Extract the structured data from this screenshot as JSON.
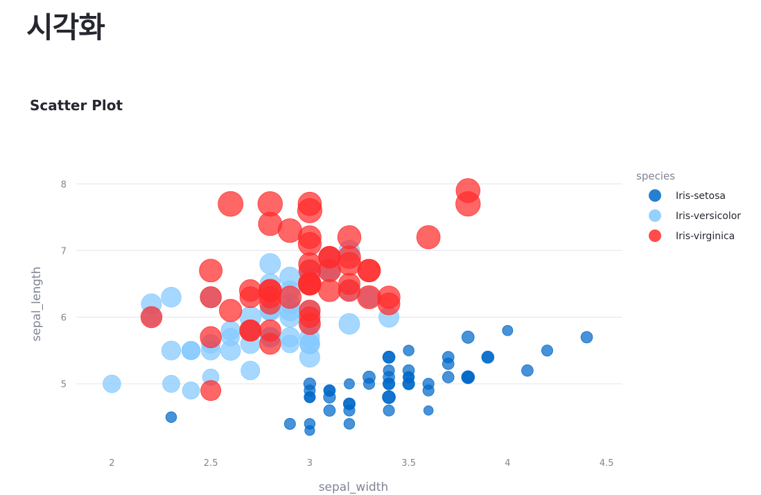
{
  "page": {
    "title": "시각화",
    "section_title": "Scatter Plot"
  },
  "chart_data": {
    "type": "scatter",
    "title": "Scatter Plot",
    "xlabel": "sepal_width",
    "ylabel": "sepal_length",
    "xlim": [
      1.82,
      4.58
    ],
    "ylim": [
      4.05,
      8.45
    ],
    "xticks": [
      2,
      2.5,
      3,
      3.5,
      4,
      4.5
    ],
    "xtick_labels": [
      "2",
      "2.5",
      "3",
      "3.5",
      "4",
      "4.5"
    ],
    "yticks": [
      5,
      6,
      7,
      8
    ],
    "ytick_labels": [
      "5",
      "6",
      "7",
      "8"
    ],
    "grid": true,
    "legend_title": "species",
    "legend_position": "right",
    "size_encoding": "petal_length",
    "series": [
      {
        "name": "Iris-setosa",
        "color": "#0068c9",
        "points": [
          [
            3.5,
            5.1,
            1.4
          ],
          [
            3.0,
            4.9,
            1.4
          ],
          [
            3.2,
            4.7,
            1.3
          ],
          [
            3.1,
            4.6,
            1.5
          ],
          [
            3.6,
            5.0,
            1.4
          ],
          [
            3.9,
            5.4,
            1.7
          ],
          [
            3.4,
            4.6,
            1.4
          ],
          [
            3.4,
            5.0,
            1.5
          ],
          [
            2.9,
            4.4,
            1.4
          ],
          [
            3.1,
            4.9,
            1.5
          ],
          [
            3.7,
            5.4,
            1.5
          ],
          [
            3.4,
            4.8,
            1.6
          ],
          [
            3.0,
            4.8,
            1.4
          ],
          [
            3.0,
            4.3,
            1.1
          ],
          [
            4.0,
            5.8,
            1.2
          ],
          [
            4.4,
            5.7,
            1.5
          ],
          [
            3.9,
            5.4,
            1.3
          ],
          [
            3.5,
            5.1,
            1.4
          ],
          [
            3.8,
            5.7,
            1.7
          ],
          [
            3.8,
            5.1,
            1.5
          ],
          [
            3.4,
            5.4,
            1.7
          ],
          [
            3.7,
            5.1,
            1.5
          ],
          [
            3.6,
            4.6,
            1.0
          ],
          [
            3.3,
            5.1,
            1.7
          ],
          [
            3.4,
            4.8,
            1.9
          ],
          [
            3.0,
            5.0,
            1.6
          ],
          [
            3.4,
            5.0,
            1.6
          ],
          [
            3.5,
            5.2,
            1.5
          ],
          [
            3.4,
            5.2,
            1.4
          ],
          [
            3.2,
            4.7,
            1.6
          ],
          [
            3.1,
            4.8,
            1.6
          ],
          [
            3.4,
            5.4,
            1.5
          ],
          [
            4.1,
            5.2,
            1.5
          ],
          [
            4.2,
            5.5,
            1.4
          ],
          [
            3.1,
            4.9,
            1.5
          ],
          [
            3.2,
            5.0,
            1.2
          ],
          [
            3.5,
            5.5,
            1.3
          ],
          [
            3.6,
            4.9,
            1.4
          ],
          [
            3.0,
            4.4,
            1.3
          ],
          [
            3.4,
            5.1,
            1.5
          ],
          [
            3.5,
            5.0,
            1.3
          ],
          [
            2.3,
            4.5,
            1.3
          ],
          [
            3.2,
            4.4,
            1.3
          ],
          [
            3.5,
            5.0,
            1.6
          ],
          [
            3.8,
            5.1,
            1.9
          ],
          [
            3.0,
            4.8,
            1.4
          ],
          [
            3.8,
            5.1,
            1.6
          ],
          [
            3.2,
            4.6,
            1.4
          ],
          [
            3.7,
            5.3,
            1.5
          ],
          [
            3.3,
            5.0,
            1.4
          ]
        ]
      },
      {
        "name": "Iris-versicolor",
        "color": "#83c9ff",
        "points": [
          [
            3.2,
            7.0,
            4.7
          ],
          [
            3.2,
            6.4,
            4.5
          ],
          [
            3.1,
            6.9,
            4.9
          ],
          [
            2.3,
            5.5,
            4.0
          ],
          [
            2.8,
            6.5,
            4.6
          ],
          [
            2.8,
            5.7,
            4.5
          ],
          [
            3.3,
            6.3,
            4.7
          ],
          [
            2.4,
            4.9,
            3.3
          ],
          [
            2.9,
            6.6,
            4.6
          ],
          [
            2.7,
            5.2,
            3.9
          ],
          [
            2.0,
            5.0,
            3.5
          ],
          [
            3.0,
            5.9,
            4.2
          ],
          [
            2.2,
            6.0,
            4.0
          ],
          [
            2.9,
            6.1,
            4.7
          ],
          [
            2.9,
            5.6,
            3.6
          ],
          [
            3.1,
            6.7,
            4.4
          ],
          [
            3.0,
            5.6,
            4.5
          ],
          [
            2.7,
            5.8,
            4.1
          ],
          [
            2.2,
            6.2,
            4.5
          ],
          [
            2.5,
            5.6,
            3.9
          ],
          [
            3.2,
            5.9,
            4.8
          ],
          [
            2.8,
            6.1,
            4.0
          ],
          [
            2.5,
            6.3,
            4.9
          ],
          [
            2.8,
            6.1,
            4.7
          ],
          [
            2.9,
            6.4,
            4.3
          ],
          [
            3.0,
            6.6,
            4.4
          ],
          [
            2.8,
            6.8,
            4.8
          ],
          [
            3.0,
            6.7,
            5.0
          ],
          [
            2.9,
            6.0,
            4.5
          ],
          [
            2.6,
            5.7,
            3.5
          ],
          [
            2.4,
            5.5,
            3.8
          ],
          [
            2.4,
            5.5,
            3.7
          ],
          [
            2.7,
            5.8,
            3.9
          ],
          [
            2.7,
            6.0,
            5.1
          ],
          [
            3.0,
            5.4,
            4.5
          ],
          [
            3.4,
            6.0,
            4.5
          ],
          [
            3.1,
            6.7,
            4.7
          ],
          [
            2.3,
            6.3,
            4.4
          ],
          [
            3.0,
            5.6,
            4.1
          ],
          [
            2.5,
            5.5,
            4.0
          ],
          [
            2.6,
            5.5,
            4.4
          ],
          [
            3.0,
            6.1,
            4.6
          ],
          [
            2.6,
            5.8,
            4.0
          ],
          [
            2.3,
            5.0,
            3.3
          ],
          [
            2.7,
            5.6,
            4.2
          ],
          [
            3.0,
            5.7,
            4.2
          ],
          [
            2.9,
            5.7,
            4.2
          ],
          [
            2.9,
            6.2,
            4.3
          ],
          [
            2.5,
            5.1,
            3.0
          ],
          [
            2.8,
            5.7,
            4.1
          ]
        ]
      },
      {
        "name": "Iris-virginica",
        "color": "#ff2b2b",
        "points": [
          [
            3.3,
            6.3,
            6.0
          ],
          [
            2.7,
            5.8,
            5.1
          ],
          [
            3.0,
            7.1,
            5.9
          ],
          [
            2.9,
            6.3,
            5.6
          ],
          [
            3.0,
            6.5,
            5.8
          ],
          [
            3.0,
            7.6,
            6.6
          ],
          [
            2.5,
            4.9,
            4.5
          ],
          [
            2.9,
            7.3,
            6.3
          ],
          [
            2.5,
            6.7,
            5.8
          ],
          [
            3.6,
            7.2,
            6.1
          ],
          [
            3.2,
            6.5,
            5.1
          ],
          [
            2.7,
            6.4,
            5.3
          ],
          [
            3.0,
            6.8,
            5.5
          ],
          [
            2.5,
            5.7,
            5.0
          ],
          [
            2.8,
            5.8,
            5.1
          ],
          [
            3.2,
            6.4,
            5.3
          ],
          [
            3.0,
            6.5,
            5.5
          ],
          [
            3.8,
            7.7,
            6.7
          ],
          [
            2.6,
            7.7,
            6.9
          ],
          [
            2.2,
            6.0,
            5.0
          ],
          [
            3.2,
            6.9,
            5.7
          ],
          [
            2.8,
            5.6,
            4.9
          ],
          [
            2.8,
            7.7,
            6.7
          ],
          [
            2.7,
            6.3,
            4.9
          ],
          [
            3.3,
            6.7,
            5.7
          ],
          [
            3.2,
            7.2,
            6.0
          ],
          [
            2.8,
            6.2,
            4.8
          ],
          [
            3.0,
            6.1,
            4.9
          ],
          [
            2.8,
            6.4,
            5.6
          ],
          [
            3.0,
            7.2,
            5.8
          ],
          [
            2.8,
            7.4,
            6.1
          ],
          [
            3.8,
            7.9,
            6.4
          ],
          [
            2.8,
            6.4,
            5.6
          ],
          [
            2.8,
            6.3,
            5.1
          ],
          [
            2.6,
            6.1,
            5.6
          ],
          [
            3.0,
            7.7,
            6.1
          ],
          [
            3.4,
            6.3,
            5.6
          ],
          [
            3.1,
            6.4,
            5.5
          ],
          [
            3.0,
            6.0,
            4.8
          ],
          [
            3.1,
            6.9,
            5.4
          ],
          [
            3.1,
            6.7,
            5.6
          ],
          [
            3.1,
            6.9,
            5.1
          ],
          [
            2.7,
            5.8,
            5.1
          ],
          [
            3.2,
            6.8,
            5.9
          ],
          [
            3.3,
            6.7,
            5.7
          ],
          [
            3.0,
            6.7,
            5.2
          ],
          [
            2.5,
            6.3,
            5.0
          ],
          [
            3.0,
            6.5,
            5.2
          ],
          [
            3.4,
            6.2,
            5.4
          ],
          [
            3.0,
            5.9,
            5.1
          ]
        ]
      }
    ]
  }
}
